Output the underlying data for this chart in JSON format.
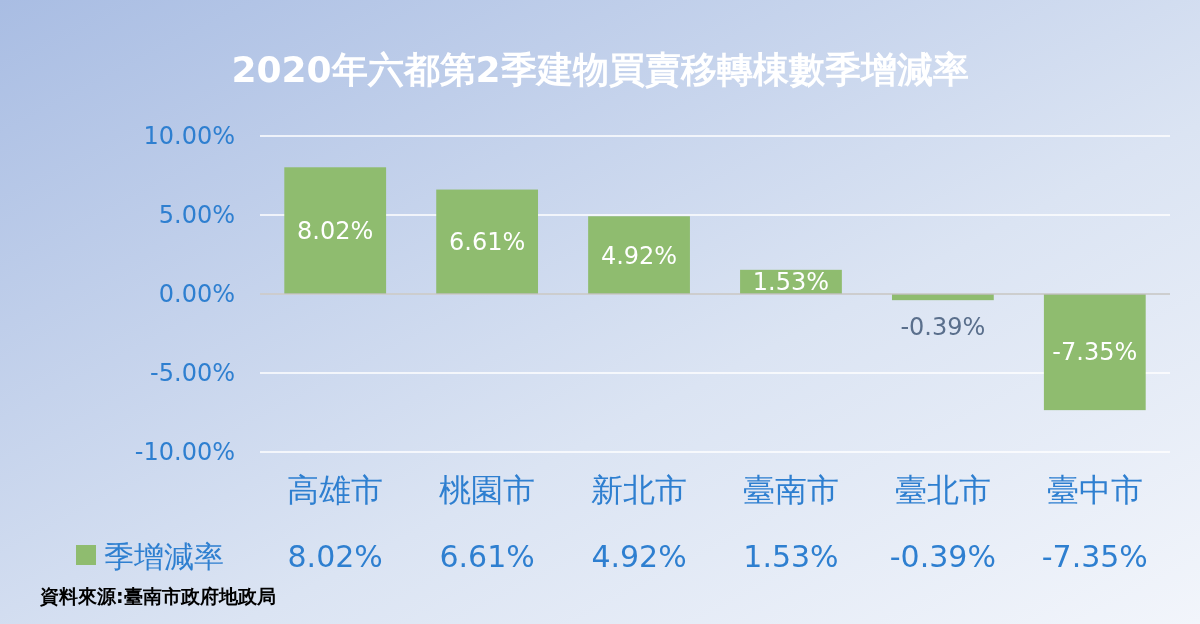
{
  "chart_data": {
    "type": "bar",
    "title": "2020年六都第2季建物買賣移轉棟數季增減率",
    "categories": [
      "高雄市",
      "桃園市",
      "新北市",
      "臺南市",
      "臺北市",
      "臺中市"
    ],
    "series": [
      {
        "name": "季增減率",
        "color": "#8fbc6f",
        "values": [
          8.02,
          6.61,
          4.92,
          1.53,
          -0.39,
          -7.35
        ],
        "value_labels": [
          "8.02%",
          "6.61%",
          "4.92%",
          "1.53%",
          "-0.39%",
          "-7.35%"
        ]
      }
    ],
    "ylim": [
      -10,
      10
    ],
    "yticks": [
      {
        "value": -10,
        "label": "-10.00%"
      },
      {
        "value": -5,
        "label": "-5.00%"
      },
      {
        "value": 0,
        "label": "0.00%"
      },
      {
        "value": 5,
        "label": "5.00%"
      },
      {
        "value": 10,
        "label": "10.00%"
      }
    ],
    "grid": "y",
    "legend": "bottom",
    "annotations": [
      "資料來源:臺南市政府地政局"
    ]
  }
}
